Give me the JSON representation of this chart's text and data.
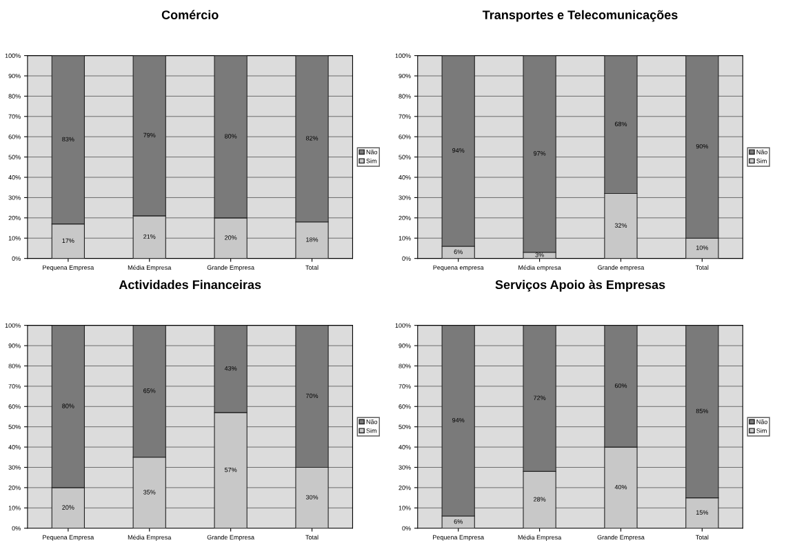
{
  "chart_data": [
    {
      "type": "bar",
      "title": "Comércio",
      "stacked": true,
      "grid": "y",
      "legend": "right",
      "categories": [
        "Pequena Empresa",
        "Média Empresa",
        "Grande Empresa",
        "Total"
      ],
      "ylim": [
        0,
        100
      ],
      "yticks": [
        {
          "value": 0,
          "label": "0%"
        },
        {
          "value": 10,
          "label": "10%"
        },
        {
          "value": 20,
          "label": "20%"
        },
        {
          "value": 30,
          "label": "30%"
        },
        {
          "value": 40,
          "label": "40%"
        },
        {
          "value": 50,
          "label": "50%"
        },
        {
          "value": 60,
          "label": "60%"
        },
        {
          "value": 70,
          "label": "70%"
        },
        {
          "value": 80,
          "label": "80%"
        },
        {
          "value": 90,
          "label": "90%"
        },
        {
          "value": 100,
          "label": "100%"
        }
      ],
      "series": [
        {
          "name": "Sim",
          "color": "#c8c8c8",
          "values": [
            17,
            21,
            20,
            18
          ],
          "value_labels": [
            "17%",
            "21%",
            "20%",
            "18%"
          ]
        },
        {
          "name": "Não",
          "color": "#7a7a7a",
          "values": [
            83,
            79,
            80,
            82
          ],
          "value_labels": [
            "83%",
            "79%",
            "80%",
            "82%"
          ]
        }
      ]
    },
    {
      "type": "bar",
      "title": "Transportes e Telecomunicações",
      "stacked": true,
      "grid": "y",
      "legend": "right",
      "categories": [
        "Pequena empresa",
        "Média empresa",
        "Grande empresa",
        "Total"
      ],
      "ylim": [
        0,
        100
      ],
      "yticks": [
        {
          "value": 0,
          "label": "0%"
        },
        {
          "value": 10,
          "label": "10%"
        },
        {
          "value": 20,
          "label": "20%"
        },
        {
          "value": 30,
          "label": "30%"
        },
        {
          "value": 40,
          "label": "40%"
        },
        {
          "value": 50,
          "label": "50%"
        },
        {
          "value": 60,
          "label": "60%"
        },
        {
          "value": 70,
          "label": "70%"
        },
        {
          "value": 80,
          "label": "80%"
        },
        {
          "value": 90,
          "label": "90%"
        },
        {
          "value": 100,
          "label": "100%"
        }
      ],
      "series": [
        {
          "name": "Sim",
          "color": "#c8c8c8",
          "values": [
            6,
            3,
            32,
            10
          ],
          "value_labels": [
            "6%",
            "3%",
            "32%",
            "10%"
          ]
        },
        {
          "name": "Não",
          "color": "#7a7a7a",
          "values": [
            94,
            97,
            68,
            90
          ],
          "value_labels": [
            "94%",
            "97%",
            "68%",
            "90%"
          ]
        }
      ]
    },
    {
      "type": "bar",
      "title": "Actividades Financeiras",
      "stacked": true,
      "grid": "y",
      "legend": "right",
      "categories": [
        "Pequena Empresa",
        "Média Empresa",
        "Grande Empresa",
        "Total"
      ],
      "ylim": [
        0,
        100
      ],
      "yticks": [
        {
          "value": 0,
          "label": "0%"
        },
        {
          "value": 10,
          "label": "10%"
        },
        {
          "value": 20,
          "label": "20%"
        },
        {
          "value": 30,
          "label": "30%"
        },
        {
          "value": 40,
          "label": "40%"
        },
        {
          "value": 50,
          "label": "50%"
        },
        {
          "value": 60,
          "label": "60%"
        },
        {
          "value": 70,
          "label": "70%"
        },
        {
          "value": 80,
          "label": "80%"
        },
        {
          "value": 90,
          "label": "90%"
        },
        {
          "value": 100,
          "label": "100%"
        }
      ],
      "series": [
        {
          "name": "Sim",
          "color": "#c8c8c8",
          "values": [
            20,
            35,
            57,
            30
          ],
          "value_labels": [
            "20%",
            "35%",
            "57%",
            "30%"
          ]
        },
        {
          "name": "Não",
          "color": "#7a7a7a",
          "values": [
            80,
            65,
            43,
            70
          ],
          "value_labels": [
            "80%",
            "65%",
            "43%",
            "70%"
          ]
        }
      ]
    },
    {
      "type": "bar",
      "title": "Serviços Apoio às Empresas",
      "stacked": true,
      "grid": "y",
      "legend": "right",
      "categories": [
        "Pequena Empresa",
        "Média Empresa",
        "Grande Empresa",
        "Total"
      ],
      "ylim": [
        0,
        100
      ],
      "yticks": [
        {
          "value": 0,
          "label": "0%"
        },
        {
          "value": 10,
          "label": "10%"
        },
        {
          "value": 20,
          "label": "20%"
        },
        {
          "value": 30,
          "label": "30%"
        },
        {
          "value": 40,
          "label": "40%"
        },
        {
          "value": 50,
          "label": "50%"
        },
        {
          "value": 60,
          "label": "60%"
        },
        {
          "value": 70,
          "label": "70%"
        },
        {
          "value": 80,
          "label": "80%"
        },
        {
          "value": 90,
          "label": "90%"
        },
        {
          "value": 100,
          "label": "100%"
        }
      ],
      "series": [
        {
          "name": "Sim",
          "color": "#c8c8c8",
          "values": [
            6,
            28,
            40,
            15
          ],
          "value_labels": [
            "6%",
            "28%",
            "40%",
            "15%"
          ]
        },
        {
          "name": "Não",
          "color": "#7a7a7a",
          "values": [
            94,
            72,
            60,
            85
          ],
          "value_labels": [
            "94%",
            "72%",
            "60%",
            "85%"
          ]
        }
      ]
    }
  ]
}
